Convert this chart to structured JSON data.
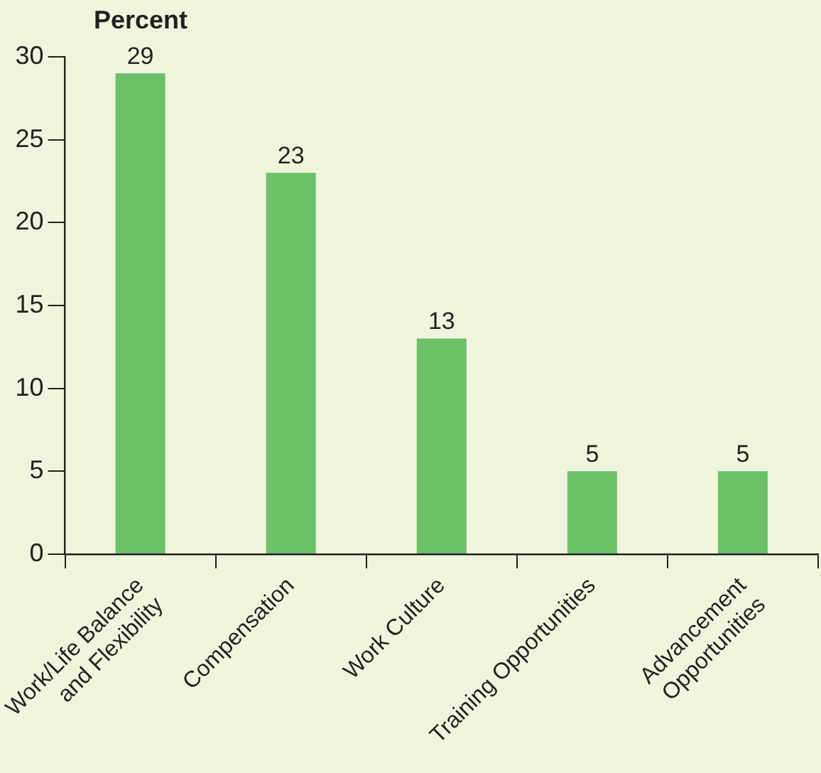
{
  "chart_data": {
    "type": "bar",
    "ylabel": "Percent",
    "categories": [
      "Work/Life Balance\nand Flexibility",
      "Compensation",
      "Work Culture",
      "Training Opportunities",
      "Advancement\nOpportunities"
    ],
    "values": [
      29,
      23,
      13,
      5,
      5
    ],
    "color": "#6cc068",
    "ylim": [
      0,
      30
    ],
    "yticks": [
      0,
      5,
      10,
      15,
      20,
      25,
      30
    ],
    "grid": false,
    "data_labels": true
  }
}
